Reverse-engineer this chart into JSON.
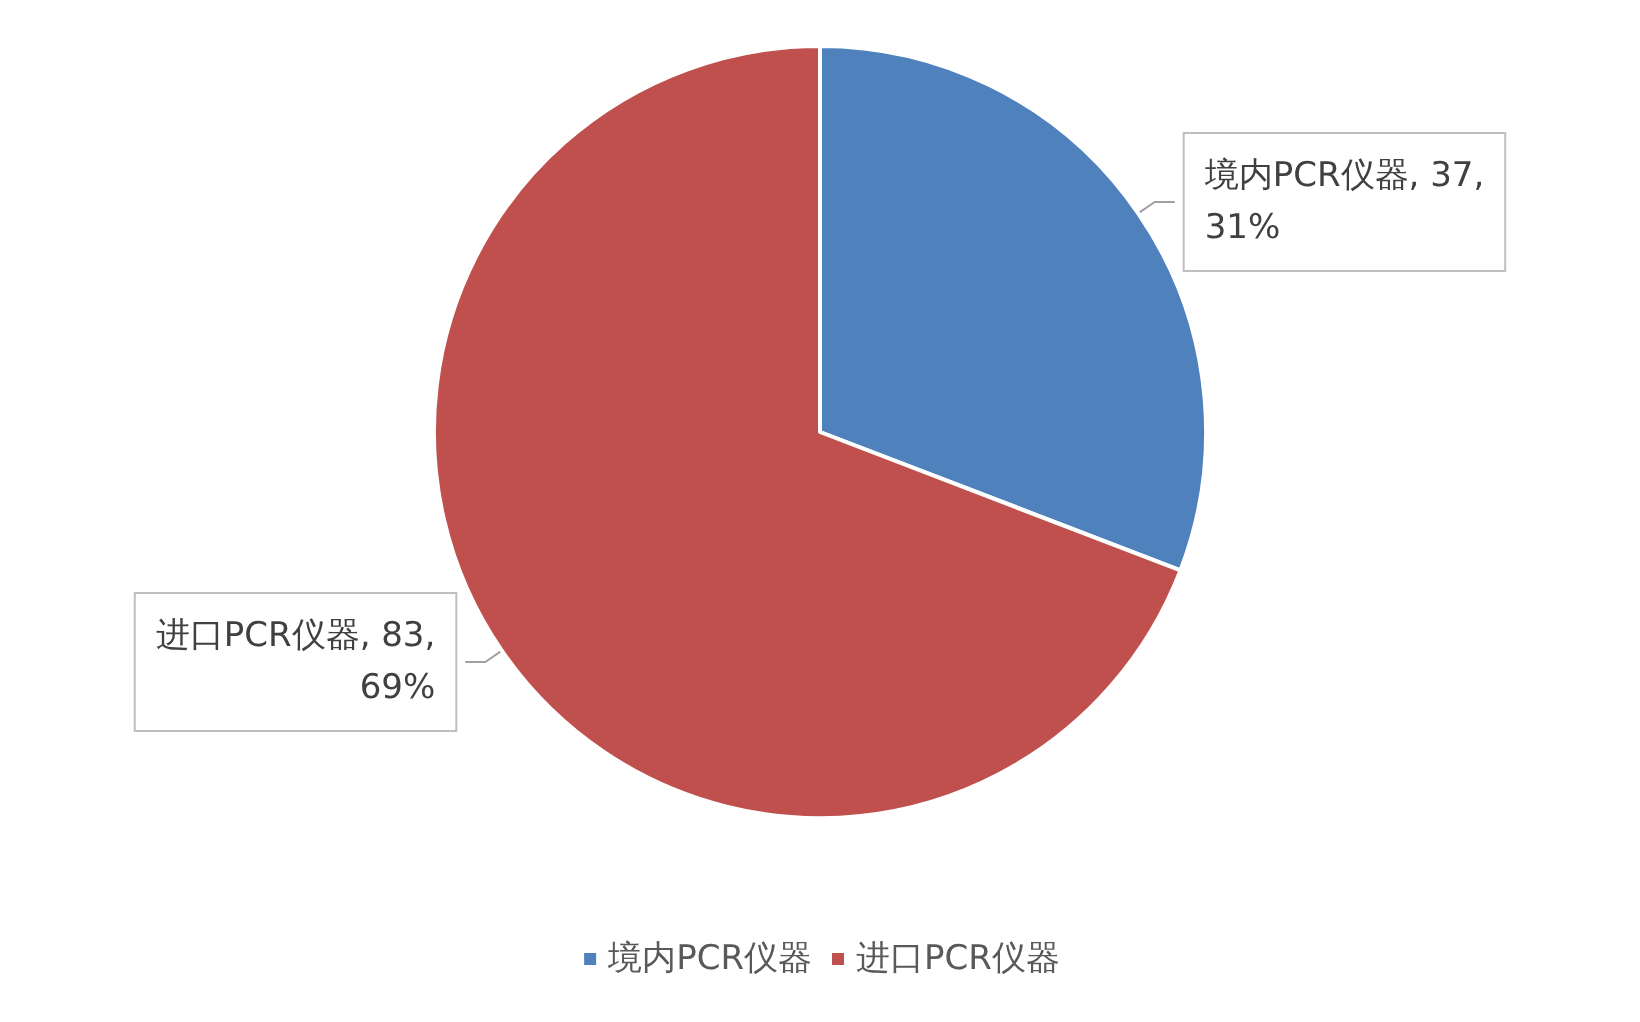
{
  "chart_data": {
    "type": "pie",
    "categories": [
      "境内PCR仪器",
      "进口PCR仪器"
    ],
    "values": [
      37,
      83
    ],
    "colors": [
      "#4f81bd",
      "#c0504d"
    ],
    "value_labels": [
      "境内PCR仪器, 37, 31%",
      "进口PCR仪器, 83, 69%"
    ],
    "legend": "bottom"
  }
}
